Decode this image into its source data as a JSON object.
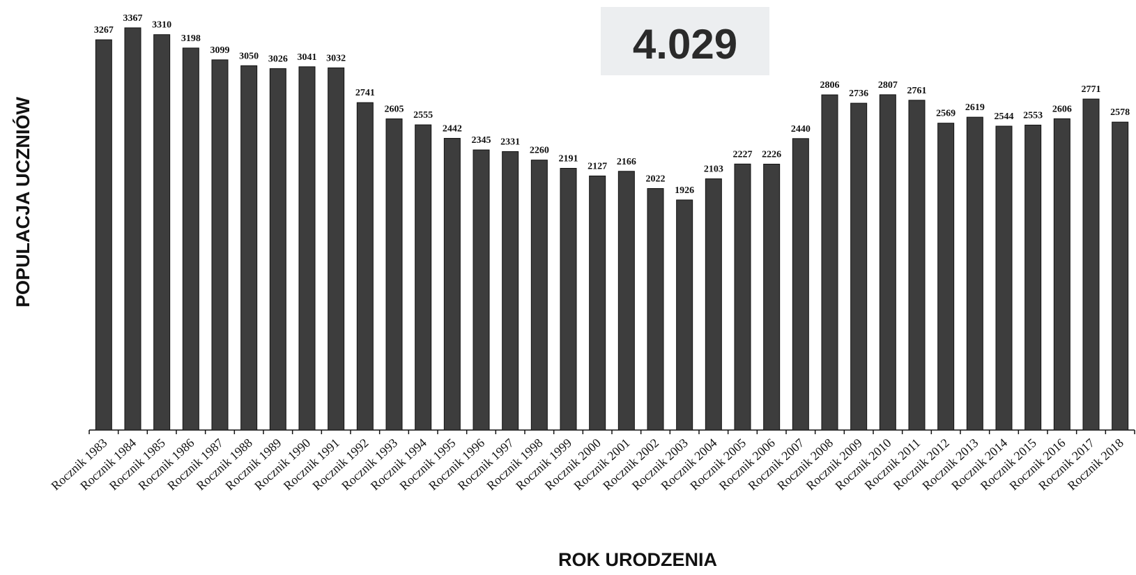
{
  "badge": {
    "value": "4.029"
  },
  "chart_data": {
    "type": "bar",
    "title": "",
    "xlabel": "ROK URODZENIA",
    "ylabel": "POPULACJA UCZNIÓW",
    "ylim": [
      0,
      3600
    ],
    "grid": false,
    "legend": "none",
    "bar_color": "#3d3d3d",
    "categories": [
      "Rocznik 1983",
      "Rocznik 1984",
      "Rocznik 1985",
      "Rocznik 1986",
      "Rocznik 1987",
      "Rocznik 1988",
      "Rocznik 1989",
      "Rocznik 1990",
      "Rocznik 1991",
      "Rocznik 1992",
      "Rocznik 1993",
      "Rocznik 1994",
      "Rocznik 1995",
      "Rocznik 1996",
      "Rocznik 1997",
      "Rocznik 1998",
      "Rocznik 1999",
      "Rocznik 2000",
      "Rocznik 2001",
      "Rocznik 2002",
      "Rocznik 2003",
      "Rocznik 2004",
      "Rocznik 2005",
      "Rocznik 2006",
      "Rocznik 2007",
      "Rocznik 2008",
      "Rocznik 2009",
      "Rocznik 2010",
      "Rocznik 2011",
      "Rocznik 2012",
      "Rocznik 2013",
      "Rocznik 2014",
      "Rocznik 2015",
      "Rocznik 2016",
      "Rocznik 2017",
      "Rocznik 2018"
    ],
    "values": [
      3267,
      3367,
      3310,
      3198,
      3099,
      3050,
      3026,
      3041,
      3032,
      2741,
      2605,
      2555,
      2442,
      2345,
      2331,
      2260,
      2191,
      2127,
      2166,
      2022,
      1926,
      2103,
      2227,
      2226,
      2440,
      2806,
      2736,
      2807,
      2761,
      2569,
      2619,
      2544,
      2553,
      2606,
      2771,
      2578
    ]
  }
}
